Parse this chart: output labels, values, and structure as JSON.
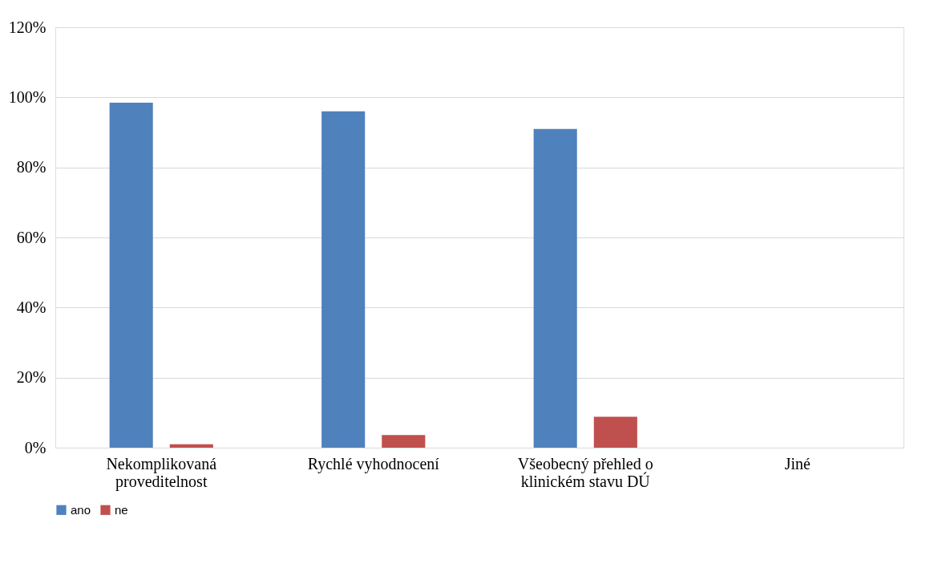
{
  "chart_data": {
    "type": "bar",
    "categories": [
      "Nekomplikovaná\nproveditelnost",
      "Rychlé vyhodnocení",
      "Všeobecný přehled o\nklinickém stavu DÚ",
      "Jiné"
    ],
    "series": [
      {
        "name": "ano",
        "color": "#4f81bd",
        "values": [
          98.5,
          96,
          91,
          0
        ]
      },
      {
        "name": "ne",
        "color": "#c0504d",
        "values": [
          1,
          3.6,
          8.8,
          0
        ]
      }
    ],
    "ylim": [
      0,
      120
    ],
    "yticks": [
      {
        "value": 0,
        "label": "0%"
      },
      {
        "value": 20,
        "label": "20%"
      },
      {
        "value": 40,
        "label": "40%"
      },
      {
        "value": 60,
        "label": "60%"
      },
      {
        "value": 80,
        "label": "80%"
      },
      {
        "value": 100,
        "label": "100%"
      },
      {
        "value": 120,
        "label": "120%"
      }
    ],
    "grid": "y",
    "legend": "bottom"
  }
}
